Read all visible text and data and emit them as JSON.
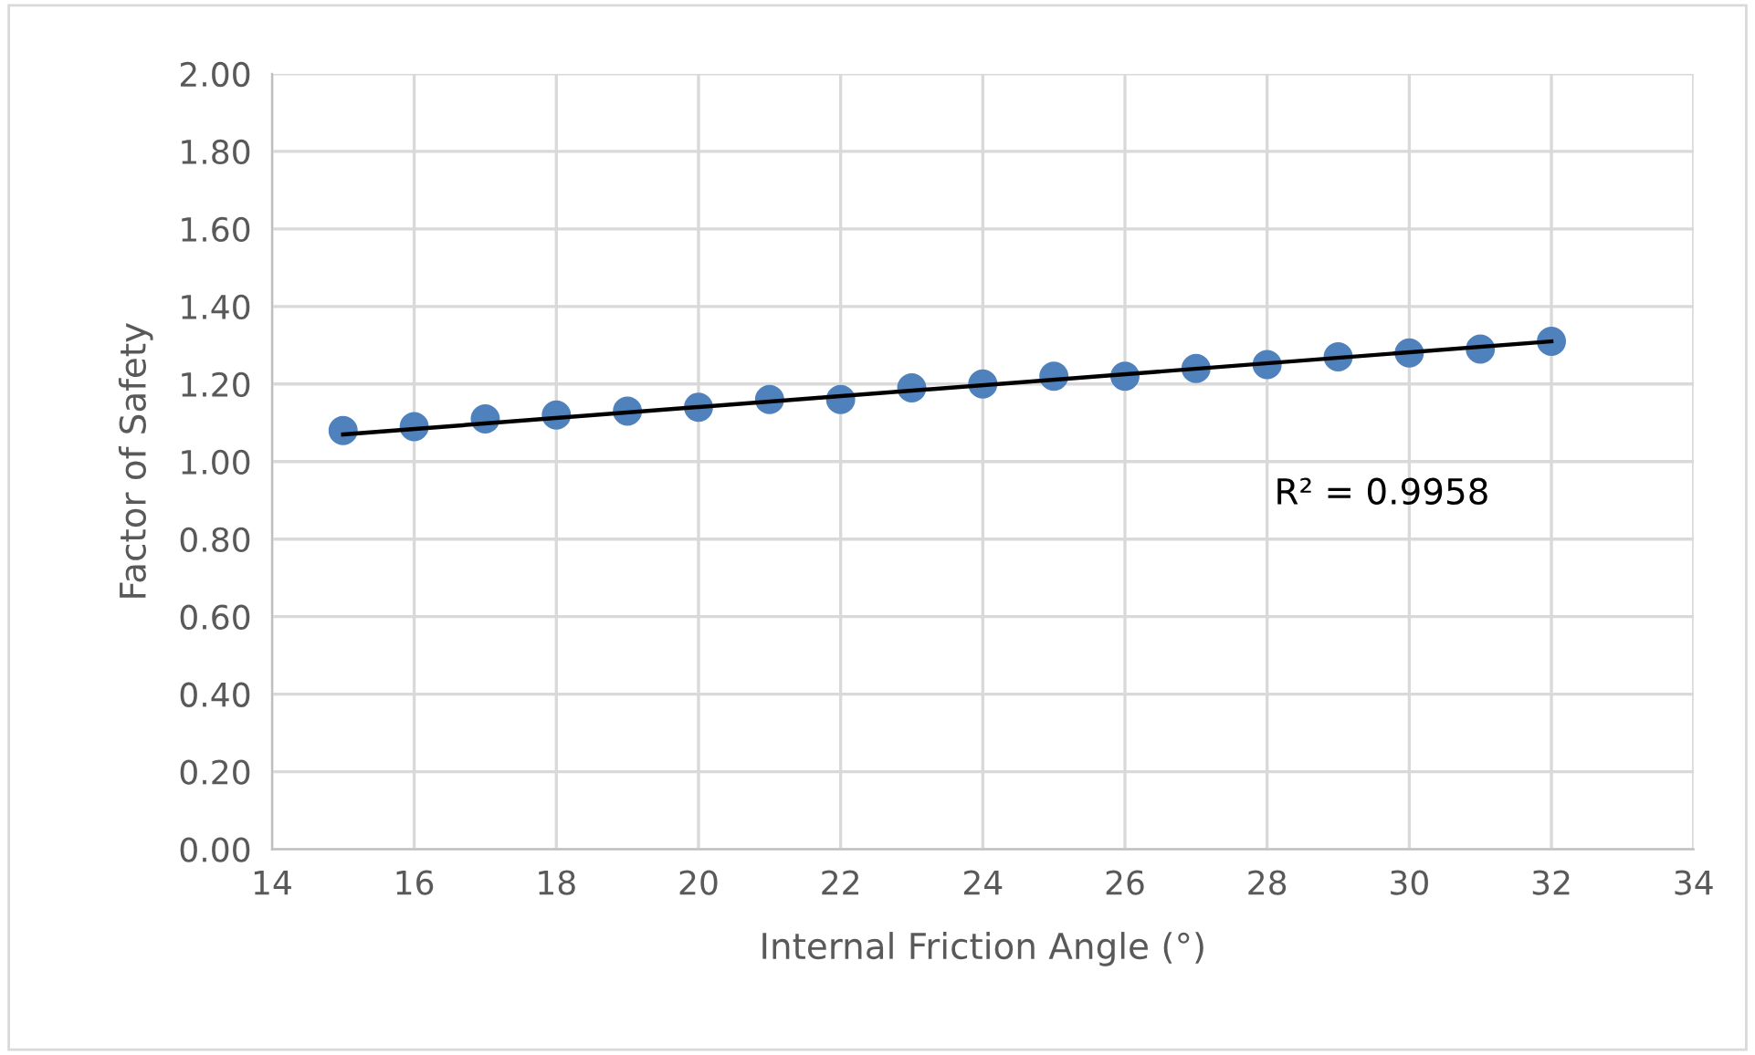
{
  "chart_data": {
    "type": "scatter",
    "xlabel": "Internal Friction Angle (°)",
    "ylabel": "Factor of Safety",
    "x": [
      15,
      16,
      17,
      18,
      19,
      20,
      21,
      22,
      23,
      24,
      25,
      26,
      27,
      28,
      29,
      30,
      31,
      32
    ],
    "series": [
      {
        "color": "#4f81bd",
        "marker": "circle",
        "values": [
          1.08,
          1.09,
          1.11,
          1.12,
          1.13,
          1.14,
          1.16,
          1.16,
          1.19,
          1.2,
          1.22,
          1.22,
          1.24,
          1.25,
          1.27,
          1.28,
          1.29,
          1.31
        ]
      },
      {
        "type": "line",
        "color": "#000000",
        "x": [
          15,
          32
        ],
        "values": [
          1.07,
          1.31
        ]
      }
    ],
    "annotations": [
      "R² = 0.9958"
    ],
    "xlim": [
      14,
      34
    ],
    "xticks": [
      14,
      16,
      18,
      20,
      22,
      24,
      26,
      28,
      30,
      32,
      34
    ],
    "ylim": [
      0,
      2
    ],
    "yticks": [
      {
        "value": 0,
        "label": "0.00"
      },
      {
        "value": 0.2,
        "label": "0.20"
      },
      {
        "value": 0.4,
        "label": "0.40"
      },
      {
        "value": 0.6,
        "label": "0.60"
      },
      {
        "value": 0.8,
        "label": "0.80"
      },
      {
        "value": 1,
        "label": "1.00"
      },
      {
        "value": 1.2,
        "label": "1.20"
      },
      {
        "value": 1.4,
        "label": "1.40"
      },
      {
        "value": 1.6,
        "label": "1.60"
      },
      {
        "value": 1.8,
        "label": "1.80"
      },
      {
        "value": 2,
        "label": "2.00"
      }
    ],
    "grid": true,
    "legend": false
  }
}
